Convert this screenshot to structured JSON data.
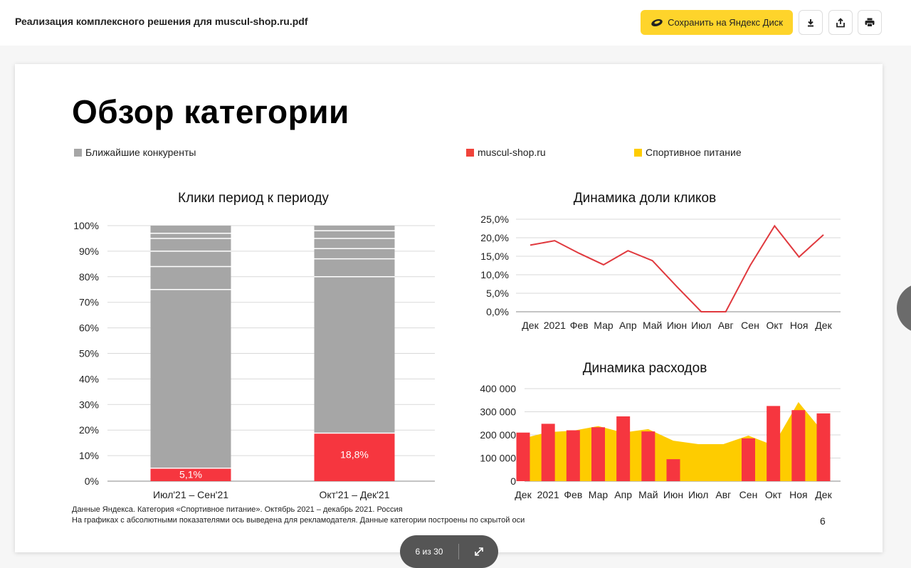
{
  "header": {
    "title": "Реализация комплексного решения для muscul-shop.ru.pdf",
    "save_label": "Сохранить на Яндекс Диск",
    "icons": [
      "yandex-disk-icon",
      "download-icon",
      "share-icon",
      "print-icon"
    ]
  },
  "slide": {
    "title": "Обзор категории",
    "legend": [
      {
        "label": "Ближайшие конкуренты",
        "color": "#a6a6a6"
      },
      {
        "label": "muscul-shop.ru",
        "color": "#f0433a"
      },
      {
        "label": "Спортивное питание",
        "color": "#fecc00"
      }
    ],
    "footnote1": "Данные Яндекса. Категория «Спортивное питание». Октябрь 2021 – декабрь 2021. Россия",
    "footnote2": "На графиках с абсолютными показателями ось выведена для рекламодателя. Данные категории построены по скрытой оси",
    "page_number": "6"
  },
  "pager": {
    "text": "6 из 30"
  },
  "chart_data": [
    {
      "type": "bar",
      "title": "Клики период к периоду",
      "categories": [
        "Июл'21 – Сен'21",
        "Окт'21 – Дек'21"
      ],
      "series": [
        {
          "name": "muscul-shop.ru",
          "values": [
            5.1,
            18.8
          ]
        },
        {
          "name": "Ближайшие конкуренты",
          "values": [
            94.9,
            81.2
          ]
        }
      ],
      "segment_dividers": [
        [
          75,
          84,
          90,
          95,
          97
        ],
        [
          80,
          87,
          91,
          95,
          98
        ]
      ],
      "data_labels": [
        "5,1%",
        "18,8%"
      ],
      "yticks": [
        "0%",
        "10%",
        "20%",
        "30%",
        "40%",
        "50%",
        "60%",
        "70%",
        "80%",
        "90%",
        "100%"
      ],
      "ylim": [
        0,
        100
      ]
    },
    {
      "type": "line",
      "title": "Динамика доли кликов",
      "categories": [
        "Дек",
        "2021",
        "Фев",
        "Мар",
        "Апр",
        "Май",
        "Июн",
        "Июл",
        "Авг",
        "Сен",
        "Окт",
        "Ноя",
        "Дек"
      ],
      "values": [
        18.0,
        19.2,
        15.8,
        12.7,
        16.5,
        13.8,
        6.8,
        0.0,
        0.0,
        12.5,
        23.2,
        14.8,
        20.8
      ],
      "yticks": [
        "0,0%",
        "5,0%",
        "10,0%",
        "15,0%",
        "20,0%",
        "25,0%"
      ],
      "ylim": [
        0,
        25
      ]
    },
    {
      "type": "bar",
      "title": "Динамика расходов",
      "categories": [
        "Дек",
        "2021",
        "Фев",
        "Мар",
        "Апр",
        "Май",
        "Июн",
        "Июл",
        "Авг",
        "Сен",
        "Окт",
        "Ноя",
        "Дек"
      ],
      "series": [
        {
          "name": "muscul-shop.ru",
          "values": [
            210000,
            248000,
            220000,
            233000,
            280000,
            215000,
            95000,
            0,
            0,
            185000,
            325000,
            307000,
            293000
          ]
        },
        {
          "name": "Спортивное питание",
          "type": "area",
          "values": [
            185000,
            212000,
            218000,
            238000,
            210000,
            225000,
            175000,
            160000,
            160000,
            197000,
            155000,
            342000,
            210000
          ]
        }
      ],
      "yticks": [
        "0",
        "100 000",
        "200 000",
        "300 000",
        "400 000"
      ],
      "ylim": [
        0,
        400000
      ]
    }
  ]
}
